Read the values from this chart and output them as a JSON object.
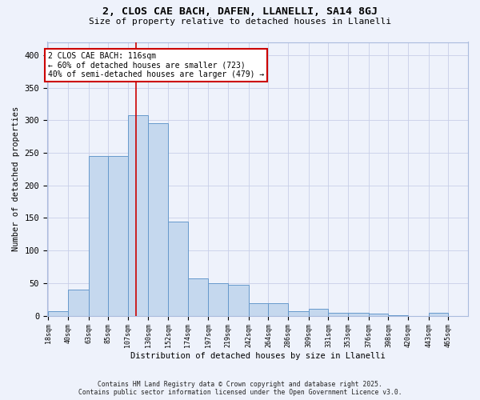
{
  "title_line1": "2, CLOS CAE BACH, DAFEN, LLANELLI, SA14 8GJ",
  "title_line2": "Size of property relative to detached houses in Llanelli",
  "xlabel": "Distribution of detached houses by size in Llanelli",
  "ylabel": "Number of detached properties",
  "bar_color": "#c5d8ee",
  "bar_edge_color": "#6699cc",
  "background_color": "#eef2fb",
  "grid_color": "#c8cfe8",
  "red_line_x": 116,
  "categories": [
    "18sqm",
    "40sqm",
    "63sqm",
    "85sqm",
    "107sqm",
    "130sqm",
    "152sqm",
    "174sqm",
    "197sqm",
    "219sqm",
    "242sqm",
    "264sqm",
    "286sqm",
    "309sqm",
    "331sqm",
    "353sqm",
    "376sqm",
    "398sqm",
    "420sqm",
    "443sqm",
    "465sqm"
  ],
  "bin_edges": [
    18,
    40,
    63,
    85,
    107,
    130,
    152,
    174,
    197,
    219,
    242,
    264,
    286,
    309,
    331,
    353,
    376,
    398,
    420,
    443,
    465
  ],
  "values": [
    7,
    40,
    245,
    245,
    308,
    295,
    144,
    57,
    50,
    47,
    19,
    19,
    7,
    11,
    4,
    4,
    3,
    1,
    0,
    4
  ],
  "annotation_text": "2 CLOS CAE BACH: 116sqm\n← 60% of detached houses are smaller (723)\n40% of semi-detached houses are larger (479) →",
  "annotation_box_color": "#ffffff",
  "annotation_box_edge": "#cc0000",
  "red_line_color": "#cc0000",
  "footer_line1": "Contains HM Land Registry data © Crown copyright and database right 2025.",
  "footer_line2": "Contains public sector information licensed under the Open Government Licence v3.0.",
  "ylim_max": 420,
  "yticks": [
    0,
    50,
    100,
    150,
    200,
    250,
    300,
    350,
    400
  ]
}
